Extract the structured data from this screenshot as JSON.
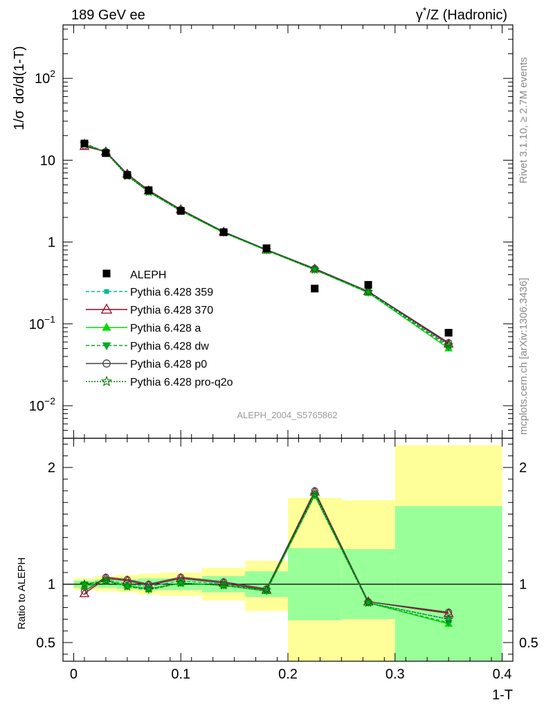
{
  "header": {
    "left": "189 GeV ee",
    "right_prefix": "γ",
    "right_sup": "*",
    "right_suffix": "/Z (Hadronic)"
  },
  "side_labels": {
    "top": "Rivet 3.1.10, ≥ 2.7M events",
    "bottom": "mcplots.cern.ch [arXiv:1306.3436]"
  },
  "watermark": "ALEPH_2004_S5765862",
  "colors": {
    "yellow_band": "#ffff99",
    "green_band": "#99ff99",
    "p359": "#00b894",
    "p370": "#990022",
    "pa": "#00dd00",
    "pdw": "#00aa22",
    "pp0": "#444444",
    "pq2o": "#007700"
  },
  "chart_data": [
    {
      "type": "scatter",
      "name": "main",
      "ylabel_parts": [
        "1/σ",
        "dσ/d(1-T)"
      ],
      "xlim": [
        -0.01,
        0.41
      ],
      "ylim": [
        0.004,
        450
      ],
      "log_y": true,
      "y_ticks": [
        {
          "v": 0.01,
          "base": "10",
          "exp": "−2"
        },
        {
          "v": 0.1,
          "base": "10",
          "exp": "−1"
        },
        {
          "v": 1,
          "base": "1",
          "exp": ""
        },
        {
          "v": 10,
          "base": "10",
          "exp": ""
        },
        {
          "v": 100,
          "base": "10",
          "exp": "2"
        }
      ],
      "data": {
        "name": "ALEPH",
        "x": [
          0.01,
          0.03,
          0.05,
          0.07,
          0.1,
          0.14,
          0.18,
          0.225,
          0.275,
          0.35
        ],
        "y": [
          16.0,
          12.2,
          6.6,
          4.3,
          2.4,
          1.32,
          0.84,
          0.27,
          0.3,
          0.078
        ]
      },
      "series": [
        {
          "name": "Pythia 6.428 359",
          "key": "p359",
          "x": [
            0.01,
            0.03,
            0.05,
            0.07,
            0.1,
            0.14,
            0.18,
            0.225,
            0.275,
            0.35
          ],
          "y": [
            15.5,
            12.6,
            6.7,
            4.2,
            2.45,
            1.31,
            0.8,
            0.47,
            0.245,
            0.054
          ]
        },
        {
          "name": "Pythia 6.428 370",
          "key": "p370",
          "x": [
            0.01,
            0.03,
            0.05,
            0.07,
            0.1,
            0.14,
            0.18,
            0.225,
            0.275,
            0.35
          ],
          "y": [
            14.8,
            12.7,
            6.8,
            4.25,
            2.5,
            1.33,
            0.8,
            0.47,
            0.25,
            0.057
          ]
        },
        {
          "name": "Pythia 6.428 a",
          "key": "pa",
          "x": [
            0.01,
            0.03,
            0.05,
            0.07,
            0.1,
            0.14,
            0.18,
            0.225,
            0.275,
            0.35
          ],
          "y": [
            15.6,
            12.5,
            6.5,
            4.1,
            2.4,
            1.3,
            0.79,
            0.46,
            0.24,
            0.05
          ]
        },
        {
          "name": "Pythia 6.428 dw",
          "key": "pdw",
          "x": [
            0.01,
            0.03,
            0.05,
            0.07,
            0.1,
            0.14,
            0.18,
            0.225,
            0.275,
            0.35
          ],
          "y": [
            16.1,
            12.6,
            6.5,
            4.1,
            2.42,
            1.3,
            0.79,
            0.46,
            0.24,
            0.052
          ]
        },
        {
          "name": "Pythia 6.428 p0",
          "key": "pp0",
          "x": [
            0.01,
            0.03,
            0.05,
            0.07,
            0.1,
            0.14,
            0.18,
            0.225,
            0.275,
            0.35
          ],
          "y": [
            15.0,
            12.8,
            6.8,
            4.3,
            2.5,
            1.34,
            0.81,
            0.475,
            0.25,
            0.059
          ]
        },
        {
          "name": "Pythia 6.428 pro-q2o",
          "key": "pq2o",
          "x": [
            0.01,
            0.03,
            0.05,
            0.07,
            0.1,
            0.14,
            0.18,
            0.225,
            0.275,
            0.35
          ],
          "y": [
            16.0,
            12.5,
            6.4,
            4.1,
            2.42,
            1.31,
            0.8,
            0.46,
            0.245,
            0.055
          ]
        }
      ]
    },
    {
      "type": "line",
      "name": "ratio",
      "xlabel": "1-T",
      "ylabel": "Ratio to ALEPH",
      "xlim": [
        -0.01,
        0.41
      ],
      "ylim": [
        0.34,
        2.25
      ],
      "x_ticks": [
        0,
        0.1,
        0.2,
        0.3,
        0.4
      ],
      "x_tick_labels": [
        "0",
        "0.1",
        "0.2",
        "0.3",
        "0.4"
      ],
      "y_ticks": [
        0.5,
        1,
        2
      ],
      "y_tick_labels": [
        "0.5",
        "1",
        "2"
      ],
      "bins": [
        {
          "lo": 0.0,
          "hi": 0.02,
          "yel": [
            0.95,
            1.05
          ],
          "grn": [
            0.97,
            1.03
          ]
        },
        {
          "lo": 0.02,
          "hi": 0.04,
          "yel": [
            0.94,
            1.07
          ],
          "grn": [
            0.97,
            1.04
          ]
        },
        {
          "lo": 0.04,
          "hi": 0.06,
          "yel": [
            0.93,
            1.08
          ],
          "grn": [
            0.96,
            1.04
          ]
        },
        {
          "lo": 0.06,
          "hi": 0.08,
          "yel": [
            0.91,
            1.09
          ],
          "grn": [
            0.95,
            1.05
          ]
        },
        {
          "lo": 0.08,
          "hi": 0.12,
          "yel": [
            0.9,
            1.1
          ],
          "grn": [
            0.95,
            1.05
          ]
        },
        {
          "lo": 0.12,
          "hi": 0.16,
          "yel": [
            0.86,
            1.14
          ],
          "grn": [
            0.93,
            1.07
          ]
        },
        {
          "lo": 0.16,
          "hi": 0.2,
          "yel": [
            0.77,
            1.2
          ],
          "grn": [
            0.89,
            1.11
          ]
        },
        {
          "lo": 0.2,
          "hi": 0.25,
          "yel": [
            0.34,
            1.74
          ],
          "grn": [
            0.69,
            1.31
          ]
        },
        {
          "lo": 0.25,
          "hi": 0.3,
          "yel": [
            0.34,
            1.72
          ],
          "grn": [
            0.7,
            1.3
          ]
        },
        {
          "lo": 0.3,
          "hi": 0.4,
          "yel": [
            0.34,
            2.19
          ],
          "grn": [
            0.34,
            1.67
          ]
        }
      ],
      "series": [
        {
          "name": "Pythia 6.428 359",
          "key": "p359",
          "x": [
            0.01,
            0.03,
            0.05,
            0.07,
            0.1,
            0.14,
            0.18,
            0.225,
            0.275,
            0.35
          ],
          "y": [
            0.97,
            1.04,
            1.0,
            0.98,
            1.03,
            1.0,
            0.95,
            1.78,
            0.84,
            0.7
          ]
        },
        {
          "name": "Pythia 6.428 370",
          "key": "p370",
          "x": [
            0.01,
            0.03,
            0.05,
            0.07,
            0.1,
            0.14,
            0.18,
            0.225,
            0.275,
            0.35
          ],
          "y": [
            0.92,
            1.05,
            1.03,
            0.99,
            1.05,
            1.01,
            0.95,
            1.79,
            0.85,
            0.75
          ]
        },
        {
          "name": "Pythia 6.428 a",
          "key": "pa",
          "x": [
            0.01,
            0.03,
            0.05,
            0.07,
            0.1,
            0.14,
            0.18,
            0.225,
            0.275,
            0.35
          ],
          "y": [
            0.98,
            1.03,
            0.99,
            0.96,
            1.01,
            0.99,
            0.94,
            1.76,
            0.84,
            0.66
          ]
        },
        {
          "name": "Pythia 6.428 dw",
          "key": "pdw",
          "x": [
            0.01,
            0.03,
            0.05,
            0.07,
            0.1,
            0.14,
            0.18,
            0.225,
            0.275,
            0.35
          ],
          "y": [
            1.0,
            1.03,
            0.98,
            0.95,
            1.01,
            0.99,
            0.94,
            1.76,
            0.84,
            0.67
          ]
        },
        {
          "name": "Pythia 6.428 p0",
          "key": "pp0",
          "x": [
            0.01,
            0.03,
            0.05,
            0.07,
            0.1,
            0.14,
            0.18,
            0.225,
            0.275,
            0.35
          ],
          "y": [
            0.94,
            1.06,
            1.04,
            1.0,
            1.06,
            1.02,
            0.96,
            1.8,
            0.85,
            0.76
          ]
        },
        {
          "name": "Pythia 6.428 pro-q2o",
          "key": "pq2o",
          "x": [
            0.01,
            0.03,
            0.05,
            0.07,
            0.1,
            0.14,
            0.18,
            0.225,
            0.275,
            0.35
          ],
          "y": [
            1.0,
            1.03,
            0.98,
            0.96,
            1.01,
            0.99,
            0.95,
            1.77,
            0.84,
            0.7
          ]
        }
      ]
    }
  ]
}
